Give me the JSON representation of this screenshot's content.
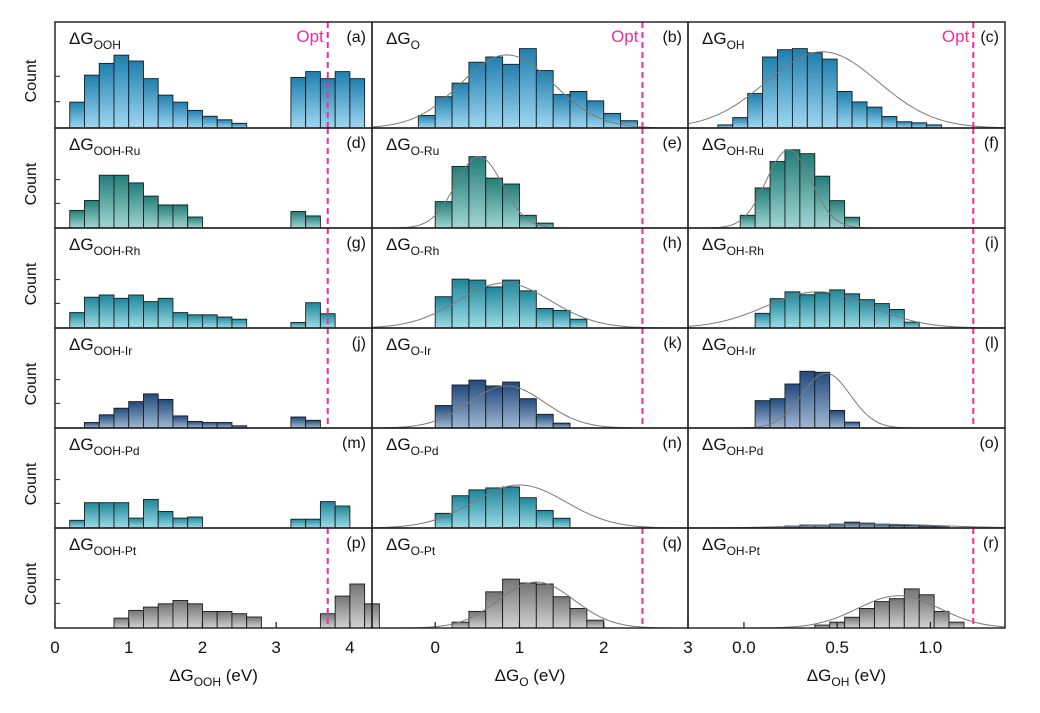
{
  "colors": {
    "blue": "#29a9e6",
    "teal": "#2ea7a0",
    "cyan": "#28b3cc",
    "navy": "#2d63a4",
    "gray": "#9c9c9c",
    "opt": "#ea2f9c",
    "fit": "#7a7a7a"
  },
  "axes": {
    "ylabel": "Count",
    "columns": [
      {
        "xlabel_main": "ΔG",
        "xlabel_sub": "OOH",
        "xlabel_unit": " (eV)",
        "xlim": [
          0,
          4.3
        ],
        "ticks": [
          0,
          1,
          2,
          3,
          4
        ],
        "tick_labels": [
          "0",
          "1",
          "2",
          "3",
          "4"
        ],
        "opt_x": 3.7
      },
      {
        "xlabel_main": "ΔG",
        "xlabel_sub": "O",
        "xlabel_unit": " (eV)",
        "xlim": [
          -0.75,
          3
        ],
        "ticks": [
          0,
          1,
          2,
          3
        ],
        "tick_labels": [
          "0",
          "1",
          "2",
          "3"
        ],
        "opt_x": 2.46
      },
      {
        "xlabel_main": "ΔG",
        "xlabel_sub": "OH",
        "xlabel_unit": " (eV)",
        "xlim": [
          -0.3,
          1.4
        ],
        "ticks": [
          0,
          0.5,
          1.0
        ],
        "tick_labels": [
          "0.0",
          "0.5",
          "1.0"
        ],
        "opt_x": 1.23
      }
    ]
  },
  "chart_data": [
    {
      "type": "bar",
      "panel": "a",
      "col": 0,
      "row": 0,
      "label_main": "ΔG",
      "label_sub": "OOH",
      "color": "blue",
      "opt": true,
      "opt_label": "Opt",
      "binwidth": 0.2,
      "bins_start": 0.2,
      "values": [
        2.2,
        4.5,
        5.5,
        6.2,
        5.7,
        4.2,
        2.8,
        2.2,
        1.5,
        1.0,
        0.7,
        0.4,
        0,
        0,
        0,
        4.3,
        4.8,
        4.2,
        4.8,
        4.2
      ],
      "ymax": 8,
      "fit": null
    },
    {
      "type": "bar",
      "panel": "b",
      "col": 1,
      "row": 0,
      "label_main": "ΔG",
      "label_sub": "O",
      "color": "blue",
      "opt": true,
      "opt_label": "Opt",
      "binwidth": 0.2,
      "bins_start": -0.2,
      "values": [
        1.2,
        3.0,
        4.3,
        6.3,
        6.8,
        6.1,
        7.6,
        5.5,
        3.2,
        3.5,
        2.6,
        1.4,
        0.7
      ],
      "ymax": 9,
      "fit": {
        "mu": 0.85,
        "sigma": 0.55,
        "amp": 7.0
      }
    },
    {
      "type": "bar",
      "panel": "c",
      "col": 2,
      "row": 0,
      "label_main": "ΔG",
      "label_sub": "OH",
      "color": "blue",
      "opt": true,
      "opt_label": "Opt",
      "binwidth": 0.08,
      "bins_start": -0.14,
      "values": [
        0.3,
        1.0,
        3.3,
        6.8,
        7.5,
        7.6,
        7.2,
        6.6,
        3.5,
        2.5,
        2.0,
        1.1,
        0.6,
        0.5,
        0.3
      ],
      "ymax": 9,
      "fit": {
        "mu": 0.42,
        "sigma": 0.3,
        "amp": 7.3
      }
    },
    {
      "type": "bar",
      "panel": "d",
      "col": 0,
      "row": 1,
      "label_main": "ΔG",
      "label_sub": "OOH-Ru",
      "color": "teal",
      "opt": true,
      "binwidth": 0.2,
      "bins_start": 0.2,
      "values": [
        1.6,
        2.5,
        4.8,
        4.8,
        4.1,
        2.9,
        2.1,
        2.1,
        1.0,
        0,
        0,
        0,
        0,
        0,
        0,
        1.5,
        1.1
      ],
      "ymax": 8,
      "fit": null
    },
    {
      "type": "bar",
      "panel": "e",
      "col": 1,
      "row": 1,
      "label_main": "ΔG",
      "label_sub": "O-Ru",
      "color": "teal",
      "opt": true,
      "binwidth": 0.2,
      "bins_start": 0.0,
      "values": [
        2.7,
        6.3,
        7.3,
        5.1,
        4.5,
        1.3,
        0.5
      ],
      "ymax": 9,
      "fit": {
        "mu": 0.52,
        "sigma": 0.28,
        "amp": 7.3
      }
    },
    {
      "type": "bar",
      "panel": "f",
      "col": 2,
      "row": 1,
      "label_main": "ΔG",
      "label_sub": "OH-Ru",
      "color": "teal",
      "opt": true,
      "binwidth": 0.08,
      "bins_start": -0.02,
      "values": [
        1.3,
        4.1,
        6.8,
        8.0,
        7.6,
        5.3,
        2.8,
        1.1
      ],
      "ymax": 9,
      "fit": {
        "mu": 0.24,
        "sigma": 0.12,
        "amp": 8.0
      }
    },
    {
      "type": "bar",
      "panel": "g",
      "col": 0,
      "row": 2,
      "label_main": "ΔG",
      "label_sub": "OOH-Rh",
      "color": "cyan",
      "opt": true,
      "binwidth": 0.2,
      "bins_start": 0.2,
      "values": [
        1.4,
        2.8,
        3.0,
        2.7,
        3.0,
        2.4,
        2.7,
        1.4,
        1.2,
        1.2,
        1.0,
        0.8,
        0,
        0,
        0,
        0.5,
        2.3,
        1.3
      ],
      "ymax": 8,
      "fit": null
    },
    {
      "type": "bar",
      "panel": "h",
      "col": 1,
      "row": 2,
      "label_main": "ΔG",
      "label_sub": "O-Rh",
      "color": "cyan",
      "opt": true,
      "binwidth": 0.2,
      "bins_start": 0.0,
      "values": [
        3.2,
        5.0,
        4.9,
        4.2,
        4.9,
        3.8,
        2.0,
        1.8,
        0.9
      ],
      "ymax": 9,
      "fit": {
        "mu": 0.82,
        "sigma": 0.55,
        "amp": 4.6
      }
    },
    {
      "type": "bar",
      "panel": "i",
      "col": 2,
      "row": 2,
      "label_main": "ΔG",
      "label_sub": "OH-Rh",
      "color": "cyan",
      "opt": true,
      "binwidth": 0.08,
      "bins_start": 0.06,
      "values": [
        1.5,
        3.0,
        3.7,
        3.4,
        3.6,
        3.9,
        3.5,
        2.9,
        2.5,
        1.9,
        0.6
      ],
      "ymax": 9,
      "fit": {
        "mu": 0.4,
        "sigma": 0.28,
        "amp": 3.7
      }
    },
    {
      "type": "bar",
      "panel": "j",
      "col": 0,
      "row": 3,
      "label_main": "ΔG",
      "label_sub": "OOH-Ir",
      "color": "navy",
      "opt": true,
      "binwidth": 0.2,
      "bins_start": 0.2,
      "values": [
        0,
        0.5,
        1.2,
        1.8,
        2.4,
        3.1,
        2.6,
        1.1,
        0.6,
        0.5,
        0.5,
        0.2,
        0,
        0,
        0,
        1.0,
        0.7
      ],
      "ymax": 8,
      "fit": null
    },
    {
      "type": "bar",
      "panel": "k",
      "col": 1,
      "row": 3,
      "label_main": "ΔG",
      "label_sub": "O-Ir",
      "color": "navy",
      "opt": true,
      "binwidth": 0.2,
      "bins_start": 0.0,
      "values": [
        2.3,
        4.4,
        4.9,
        4.3,
        4.7,
        3.0,
        1.4,
        0.5
      ],
      "ymax": 9,
      "fit": {
        "mu": 0.85,
        "sigma": 0.45,
        "amp": 4.3
      }
    },
    {
      "type": "bar",
      "panel": "l",
      "col": 2,
      "row": 3,
      "label_main": "ΔG",
      "label_sub": "OH-Ir",
      "color": "navy",
      "opt": true,
      "binwidth": 0.08,
      "bins_start": 0.06,
      "values": [
        2.8,
        3.0,
        4.5,
        5.8,
        5.7,
        1.8,
        0.6
      ],
      "ymax": 9,
      "fit": {
        "mu": 0.44,
        "sigma": 0.13,
        "amp": 5.6
      }
    },
    {
      "type": "bar",
      "panel": "m",
      "col": 0,
      "row": 4,
      "label_main": "ΔG",
      "label_sub": "OOH-Pd",
      "color": "cyan",
      "opt": false,
      "binwidth": 0.2,
      "bins_start": 0.2,
      "values": [
        0.7,
        2.3,
        2.3,
        2.3,
        0.9,
        2.6,
        1.5,
        0.9,
        1.0,
        0,
        0,
        0,
        0,
        0,
        0,
        0.8,
        0.8,
        2.4,
        2.0
      ],
      "ymax": 8,
      "fit": null
    },
    {
      "type": "bar",
      "panel": "n",
      "col": 1,
      "row": 4,
      "label_main": "ΔG",
      "label_sub": "O-Pd",
      "color": "cyan",
      "opt": false,
      "binwidth": 0.2,
      "bins_start": 0.0,
      "values": [
        1.5,
        3.3,
        3.9,
        4.1,
        4.2,
        3.1,
        1.8,
        1.0
      ],
      "ymax": 9,
      "fit": {
        "mu": 1.0,
        "sigma": 0.55,
        "amp": 4.4
      }
    },
    {
      "type": "bar",
      "panel": "o",
      "col": 2,
      "row": 4,
      "label_main": "ΔG",
      "label_sub": "OH-Pd",
      "color": "navy",
      "opt": false,
      "binwidth": 0.08,
      "bins_start": 0.22,
      "values": [
        0.2,
        0.3,
        0.3,
        0.4,
        0.6,
        0.5,
        0.4,
        0.3,
        0.3,
        0.2,
        0.2
      ],
      "ymax": 9,
      "fit": {
        "mu": 0.7,
        "sigma": 0.35,
        "amp": 0.4
      }
    },
    {
      "type": "bar",
      "panel": "p",
      "col": 0,
      "row": 5,
      "label_main": "ΔG",
      "label_sub": "OOH-Pt",
      "color": "gray",
      "opt": true,
      "binwidth": 0.2,
      "bins_start": 0.8,
      "values": [
        0.9,
        1.6,
        1.9,
        2.2,
        2.5,
        2.2,
        1.5,
        1.5,
        1.3,
        1.0,
        0,
        0,
        0,
        0,
        1.3,
        2.9,
        4.0,
        2.2
      ],
      "ymax": 8,
      "fit": null
    },
    {
      "type": "bar",
      "panel": "q",
      "col": 1,
      "row": 5,
      "label_main": "ΔG",
      "label_sub": "O-Pt",
      "color": "gray",
      "opt": true,
      "binwidth": 0.2,
      "bins_start": 0.2,
      "values": [
        0.6,
        1.7,
        3.7,
        5.0,
        4.6,
        4.5,
        3.2,
        2.0,
        0.8
      ],
      "ymax": 9,
      "fit": {
        "mu": 1.2,
        "sigma": 0.45,
        "amp": 4.7
      }
    },
    {
      "type": "bar",
      "panel": "r",
      "col": 2,
      "row": 5,
      "label_main": "ΔG",
      "label_sub": "OH-Pt",
      "color": "gray",
      "opt": true,
      "binwidth": 0.08,
      "bins_start": 0.38,
      "values": [
        0.3,
        0.6,
        1.1,
        2.0,
        2.7,
        3.0,
        4.0,
        3.4,
        1.7,
        0.6
      ],
      "ymax": 9,
      "fit": {
        "mu": 0.83,
        "sigma": 0.22,
        "amp": 3.3
      }
    }
  ]
}
